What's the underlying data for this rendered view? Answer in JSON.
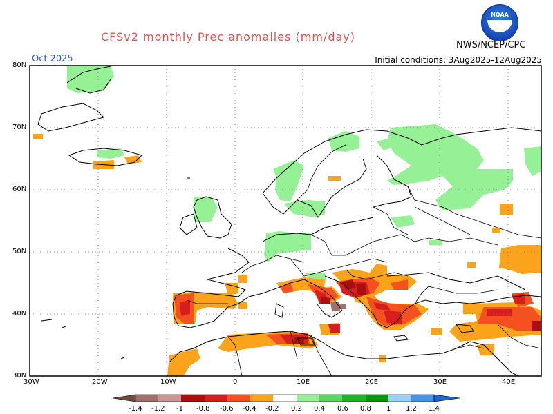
{
  "title": "CFSv2 monthly Prec anomalies (mm/day)",
  "month_label": "Oct 2025",
  "agency": "NWS/NCEP/CPC",
  "logo_text": "NOAA",
  "initial_conditions": "Initial conditions: 3Aug2025-12Aug2025",
  "lat_labels": [
    "80N",
    "70N",
    "60N",
    "50N",
    "40N",
    "30N"
  ],
  "lon_labels": [
    "30W",
    "20W",
    "10W",
    "0",
    "10E",
    "20E",
    "30E",
    "40E"
  ],
  "colorbar": {
    "labels": [
      "-1.4",
      "-1.2",
      "-1",
      "-0.8",
      "-0.6",
      "-0.4",
      "-0.2",
      "0.2",
      "0.4",
      "0.6",
      "0.8",
      "1",
      "1.2",
      "1.4"
    ],
    "colors": [
      "#6e4a40",
      "#a1726a",
      "#c99894",
      "#a81010",
      "#d71d1d",
      "#f5501f",
      "#fba31a",
      "#ffffff",
      "#96f096",
      "#5ad85a",
      "#23b423",
      "#0a960a",
      "#96d2fa",
      "#4696e6",
      "#1e64d2"
    ]
  },
  "map": {
    "lat_range": [
      30,
      80
    ],
    "lon_range": [
      -30,
      45
    ],
    "anomaly_colors": {
      "light_green": "#96f096",
      "orange": "#fba31a",
      "red_orange": "#f5501f",
      "red": "#d71d1d",
      "dark_red": "#a81010",
      "brown": "#a1726a"
    }
  }
}
